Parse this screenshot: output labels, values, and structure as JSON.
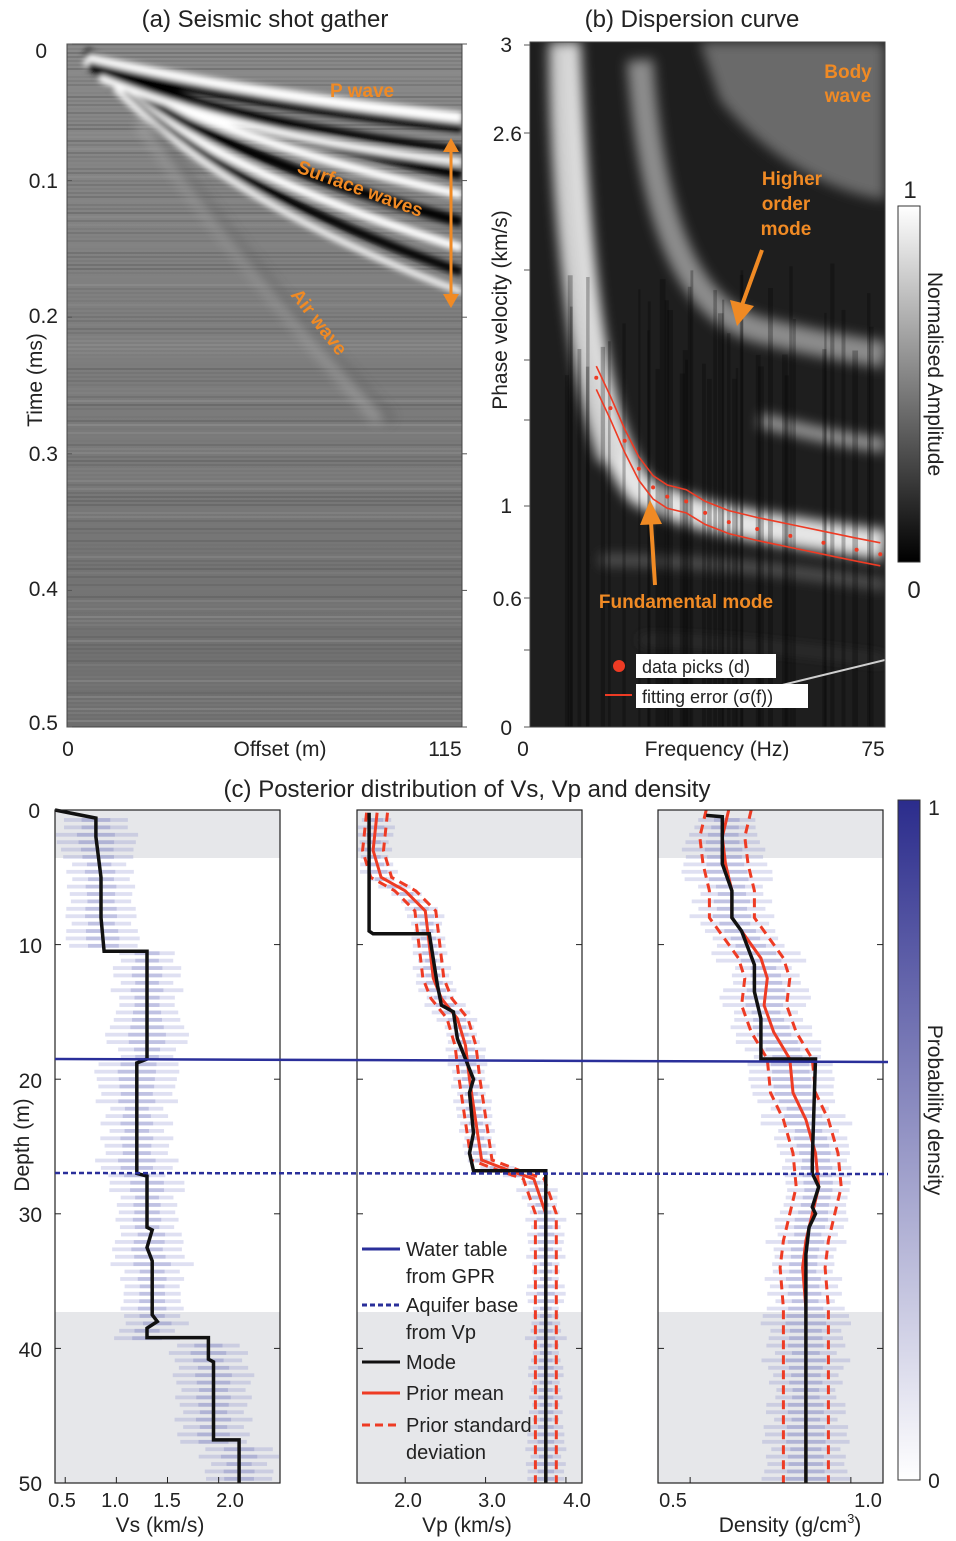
{
  "panel_a": {
    "title": "(a) Seismic shot gather",
    "xlabel": "Offset (m)",
    "ylabel": "Time (ms)",
    "x_ticks": [
      "0",
      "115"
    ],
    "y_ticks": [
      "0",
      "0.1",
      "0.2",
      "0.3",
      "0.4",
      "0.5"
    ],
    "annotations": [
      "P wave",
      "Surface waves",
      "Air wave"
    ]
  },
  "panel_b": {
    "title": "(b) Dispersion curve",
    "xlabel": "Frequency (Hz)",
    "ylabel": "Phase velocity (km/s)",
    "x_ticks": [
      "0",
      "75"
    ],
    "y_ticks": [
      "0",
      "0.6",
      "1",
      "2.6",
      "3"
    ],
    "annotations": [
      "Body",
      "wave",
      "Higher",
      "order",
      "mode",
      "Fundamental mode"
    ],
    "legend": [
      "data picks (d)",
      "fitting error (σ(f))"
    ],
    "colorbar": {
      "label": "Normalised Amplitude",
      "max": "1",
      "min": "0"
    }
  },
  "panel_c": {
    "title": "(c) Posterior distribution of Vs, Vp and density",
    "ylabel": "Depth (m)",
    "y_ticks": [
      "0",
      "10",
      "20",
      "30",
      "40",
      "50"
    ],
    "vs": {
      "xlabel": "Vs (km/s)",
      "x_ticks": [
        "0.5",
        "1.0",
        "1.5",
        "2.0"
      ]
    },
    "vp": {
      "xlabel": "Vp (km/s)",
      "x_ticks": [
        "2.0",
        "3.0",
        "4.0"
      ]
    },
    "rho": {
      "xlabel": "Density (g/cm",
      "xlabel_sup": "3",
      "xlabel_end": ")",
      "x_ticks": [
        "0.5",
        "1.0"
      ]
    },
    "legend": [
      "Water table",
      "from GPR",
      "Aquifer base",
      "from Vp",
      "Mode",
      "Prior mean",
      "Prior standard",
      "deviation"
    ],
    "colorbar": {
      "label": "Probability density",
      "max": "1",
      "min": "0"
    }
  },
  "colors": {
    "orange": "#f08a24",
    "red": "#ee3b24",
    "blue": "#2a2f9a",
    "mode": "#111111"
  },
  "chart_data": [
    {
      "type": "heatmap",
      "name": "seismic shot gather",
      "x_range": [
        0,
        115
      ],
      "y_range": [
        0,
        0.5
      ],
      "y_reversed": true,
      "events": [
        {
          "label": "P wave",
          "time_at_115m": 0.055
        },
        {
          "label": "Surface waves",
          "time_range_at_115m": [
            0.07,
            0.19
          ]
        },
        {
          "label": "Air wave",
          "approx_time_range": [
            0.2,
            0.25
          ]
        }
      ]
    },
    {
      "type": "line",
      "name": "dispersion curve",
      "x_range": [
        0,
        75
      ],
      "xlabel": "Frequency (Hz)",
      "ylabel": "Phase velocity (km/s)",
      "y_ticks_values": [
        0,
        0.6,
        1,
        2.6,
        3
      ],
      "picks": [
        {
          "f": 14,
          "v": 1.55
        },
        {
          "f": 17,
          "v": 1.42
        },
        {
          "f": 20,
          "v": 1.28
        },
        {
          "f": 23,
          "v": 1.16
        },
        {
          "f": 26,
          "v": 1.08
        },
        {
          "f": 29,
          "v": 1.04
        },
        {
          "f": 33,
          "v": 1.02
        },
        {
          "f": 37,
          "v": 0.97
        },
        {
          "f": 42,
          "v": 0.93
        },
        {
          "f": 48,
          "v": 0.9
        },
        {
          "f": 55,
          "v": 0.87
        },
        {
          "f": 62,
          "v": 0.84
        },
        {
          "f": 69,
          "v": 0.81
        },
        {
          "f": 74,
          "v": 0.79
        }
      ],
      "fitting_error_halfwidth": 0.05
    },
    {
      "type": "line",
      "name": "posterior Vs",
      "x_range": [
        0.4,
        2.6
      ],
      "y_range": [
        0,
        50
      ],
      "mode": [
        [
          0.4,
          0
        ],
        [
          0.8,
          0.6
        ],
        [
          0.8,
          2
        ],
        [
          0.85,
          5
        ],
        [
          0.85,
          8
        ],
        [
          0.88,
          10.5
        ],
        [
          1.3,
          10.5
        ],
        [
          1.3,
          18.5
        ],
        [
          1.2,
          18.8
        ],
        [
          1.2,
          27
        ],
        [
          1.3,
          27.2
        ],
        [
          1.3,
          31
        ],
        [
          1.35,
          31.2
        ],
        [
          1.3,
          32.5
        ],
        [
          1.35,
          33.5
        ],
        [
          1.35,
          37.5
        ],
        [
          1.4,
          38
        ],
        [
          1.3,
          38.5
        ],
        [
          1.3,
          39.2
        ],
        [
          1.9,
          39.2
        ],
        [
          1.9,
          40.8
        ],
        [
          1.95,
          41
        ],
        [
          1.95,
          46.8
        ],
        [
          2.2,
          46.8
        ],
        [
          2.2,
          50
        ]
      ],
      "water_table_depth": 18.8,
      "aquifer_base_depth": 27
    },
    {
      "type": "line",
      "name": "posterior Vp",
      "x_range": [
        1.4,
        4.2
      ],
      "y_range": [
        0,
        50
      ],
      "mode": [
        [
          1.55,
          0.2
        ],
        [
          1.55,
          9
        ],
        [
          1.6,
          9.2
        ],
        [
          2.3,
          9.2
        ],
        [
          2.4,
          13
        ],
        [
          2.45,
          14.5
        ],
        [
          2.6,
          15
        ],
        [
          2.65,
          17
        ],
        [
          2.75,
          18.5
        ],
        [
          2.85,
          20
        ],
        [
          2.8,
          21
        ],
        [
          2.85,
          24
        ],
        [
          2.8,
          25.5
        ],
        [
          2.85,
          26.8
        ],
        [
          3.75,
          26.8
        ],
        [
          3.75,
          50
        ]
      ],
      "prior_mean": [
        [
          1.65,
          0.2
        ],
        [
          1.6,
          3
        ],
        [
          1.7,
          5
        ],
        [
          2.0,
          6
        ],
        [
          2.25,
          7.5
        ],
        [
          2.3,
          10
        ],
        [
          2.35,
          12.5
        ],
        [
          2.45,
          14
        ],
        [
          2.65,
          15.5
        ],
        [
          2.75,
          17.5
        ],
        [
          2.8,
          20
        ],
        [
          2.85,
          22
        ],
        [
          2.9,
          24
        ],
        [
          2.95,
          26
        ],
        [
          3.3,
          26.8
        ],
        [
          3.6,
          27.4
        ],
        [
          3.75,
          30
        ],
        [
          3.75,
          50
        ]
      ],
      "prior_std_offset": 0.13
    },
    {
      "type": "line",
      "name": "posterior density",
      "x_range": [
        0.4,
        1.1
      ],
      "y_range": [
        0,
        50
      ],
      "mode": [
        [
          0.55,
          0.4
        ],
        [
          0.6,
          0.5
        ],
        [
          0.6,
          4
        ],
        [
          0.63,
          6
        ],
        [
          0.63,
          8
        ],
        [
          0.66,
          9
        ],
        [
          0.7,
          11.5
        ],
        [
          0.7,
          13.5
        ],
        [
          0.72,
          15.5
        ],
        [
          0.72,
          18.5
        ],
        [
          0.89,
          18.5
        ],
        [
          0.88,
          26
        ],
        [
          0.88,
          27
        ],
        [
          0.9,
          28
        ],
        [
          0.88,
          29.5
        ],
        [
          0.89,
          30
        ],
        [
          0.87,
          31
        ],
        [
          0.86,
          33
        ],
        [
          0.86,
          50
        ]
      ],
      "prior_mean": [
        [
          0.62,
          0
        ],
        [
          0.6,
          2
        ],
        [
          0.61,
          4
        ],
        [
          0.63,
          6
        ],
        [
          0.63,
          8
        ],
        [
          0.66,
          9
        ],
        [
          0.72,
          11
        ],
        [
          0.74,
          12.5
        ],
        [
          0.73,
          14.5
        ],
        [
          0.76,
          16.5
        ],
        [
          0.81,
          18.5
        ],
        [
          0.82,
          21
        ],
        [
          0.86,
          23
        ],
        [
          0.89,
          25.5
        ],
        [
          0.9,
          28
        ],
        [
          0.88,
          30
        ],
        [
          0.86,
          32
        ],
        [
          0.85,
          34
        ],
        [
          0.86,
          37
        ],
        [
          0.86,
          50
        ]
      ],
      "prior_std_offset": 0.07
    }
  ]
}
